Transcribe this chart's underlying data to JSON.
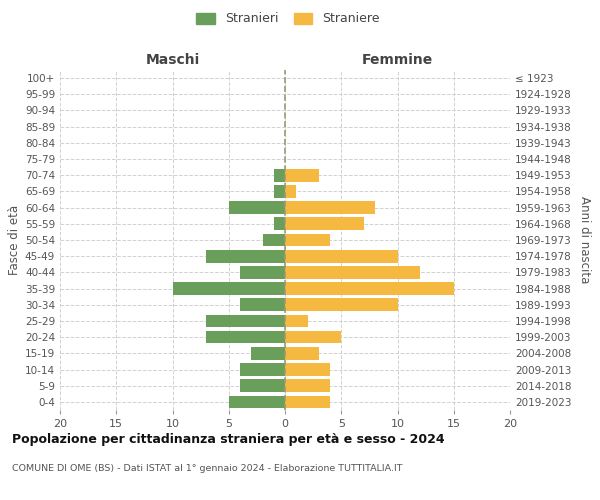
{
  "age_groups": [
    "0-4",
    "5-9",
    "10-14",
    "15-19",
    "20-24",
    "25-29",
    "30-34",
    "35-39",
    "40-44",
    "45-49",
    "50-54",
    "55-59",
    "60-64",
    "65-69",
    "70-74",
    "75-79",
    "80-84",
    "85-89",
    "90-94",
    "95-99",
    "100+"
  ],
  "birth_years": [
    "2019-2023",
    "2014-2018",
    "2009-2013",
    "2004-2008",
    "1999-2003",
    "1994-1998",
    "1989-1993",
    "1984-1988",
    "1979-1983",
    "1974-1978",
    "1969-1973",
    "1964-1968",
    "1959-1963",
    "1954-1958",
    "1949-1953",
    "1944-1948",
    "1939-1943",
    "1934-1938",
    "1929-1933",
    "1924-1928",
    "≤ 1923"
  ],
  "maschi": [
    5,
    4,
    4,
    3,
    7,
    7,
    4,
    10,
    4,
    7,
    2,
    1,
    5,
    1,
    1,
    0,
    0,
    0,
    0,
    0,
    0
  ],
  "femmine": [
    4,
    4,
    4,
    3,
    5,
    2,
    10,
    15,
    12,
    10,
    4,
    7,
    8,
    1,
    3,
    0,
    0,
    0,
    0,
    0,
    0
  ],
  "color_maschi": "#6a9e5b",
  "color_femmine": "#f5b942",
  "title": "Popolazione per cittadinanza straniera per età e sesso - 2024",
  "subtitle": "COMUNE DI OME (BS) - Dati ISTAT al 1° gennaio 2024 - Elaborazione TUTTITALIA.IT",
  "label_maschi": "Stranieri",
  "label_femmine": "Straniere",
  "xlabel_left": "Maschi",
  "xlabel_right": "Femmine",
  "ylabel_left": "Fasce di età",
  "ylabel_right": "Anni di nascita",
  "xlim": 20,
  "background_color": "#ffffff",
  "grid_color": "#cccccc"
}
